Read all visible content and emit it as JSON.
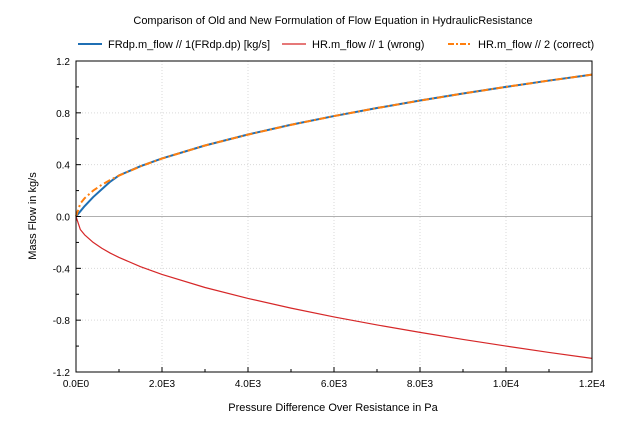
{
  "chart_data": {
    "type": "line",
    "title": "Comparison of Old and New Formulation of Flow Equation in HydraulicResistance",
    "xlabel": "Pressure Difference Over Resistance in Pa",
    "ylabel": "Mass Flow in kg/s",
    "xlim": [
      0,
      12000
    ],
    "ylim": [
      -1.2,
      1.2
    ],
    "x_ticks": [
      0,
      2000,
      4000,
      6000,
      8000,
      10000,
      12000
    ],
    "x_tick_labels": [
      "0.0E0",
      "2.0E3",
      "4.0E3",
      "6.0E3",
      "8.0E3",
      "1.0E4",
      "1.2E4"
    ],
    "y_ticks": [
      -1.2,
      -0.8,
      -0.4,
      0.0,
      0.4,
      0.8,
      1.2
    ],
    "y_tick_labels": [
      "-1.2",
      "-0.8",
      "-0.4",
      "0.0",
      "0.4",
      "0.8",
      "1.2"
    ],
    "grid": true,
    "legend_position": "top",
    "x": [
      0,
      100,
      200,
      400,
      600,
      800,
      1000,
      1500,
      2000,
      3000,
      4000,
      5000,
      6000,
      7000,
      8000,
      9000,
      10000,
      11000,
      12000
    ],
    "series": [
      {
        "name": "FRdp.m_flow // 1(FRdp.dp) [kg/s]",
        "color": "#1f6fb4",
        "style": "solid",
        "values": [
          0.0,
          0.04,
          0.08,
          0.15,
          0.21,
          0.27,
          0.317,
          0.388,
          0.448,
          0.548,
          0.633,
          0.708,
          0.775,
          0.837,
          0.895,
          0.949,
          1.0,
          1.049,
          1.095
        ]
      },
      {
        "name": "HR.m_flow // 1 (wrong)",
        "color": "#d62728",
        "style": "solid",
        "values": [
          0.0,
          -0.1,
          -0.141,
          -0.2,
          -0.245,
          -0.283,
          -0.316,
          -0.387,
          -0.447,
          -0.548,
          -0.632,
          -0.707,
          -0.775,
          -0.837,
          -0.894,
          -0.949,
          -1.0,
          -1.049,
          -1.095
        ]
      },
      {
        "name": "HR.m_flow // 2 (correct)",
        "color": "#ff7f0e",
        "style": "dashdot",
        "values": [
          0.0,
          0.1,
          0.141,
          0.2,
          0.245,
          0.283,
          0.316,
          0.387,
          0.447,
          0.548,
          0.632,
          0.707,
          0.775,
          0.837,
          0.894,
          0.949,
          1.0,
          1.049,
          1.095
        ]
      }
    ]
  }
}
